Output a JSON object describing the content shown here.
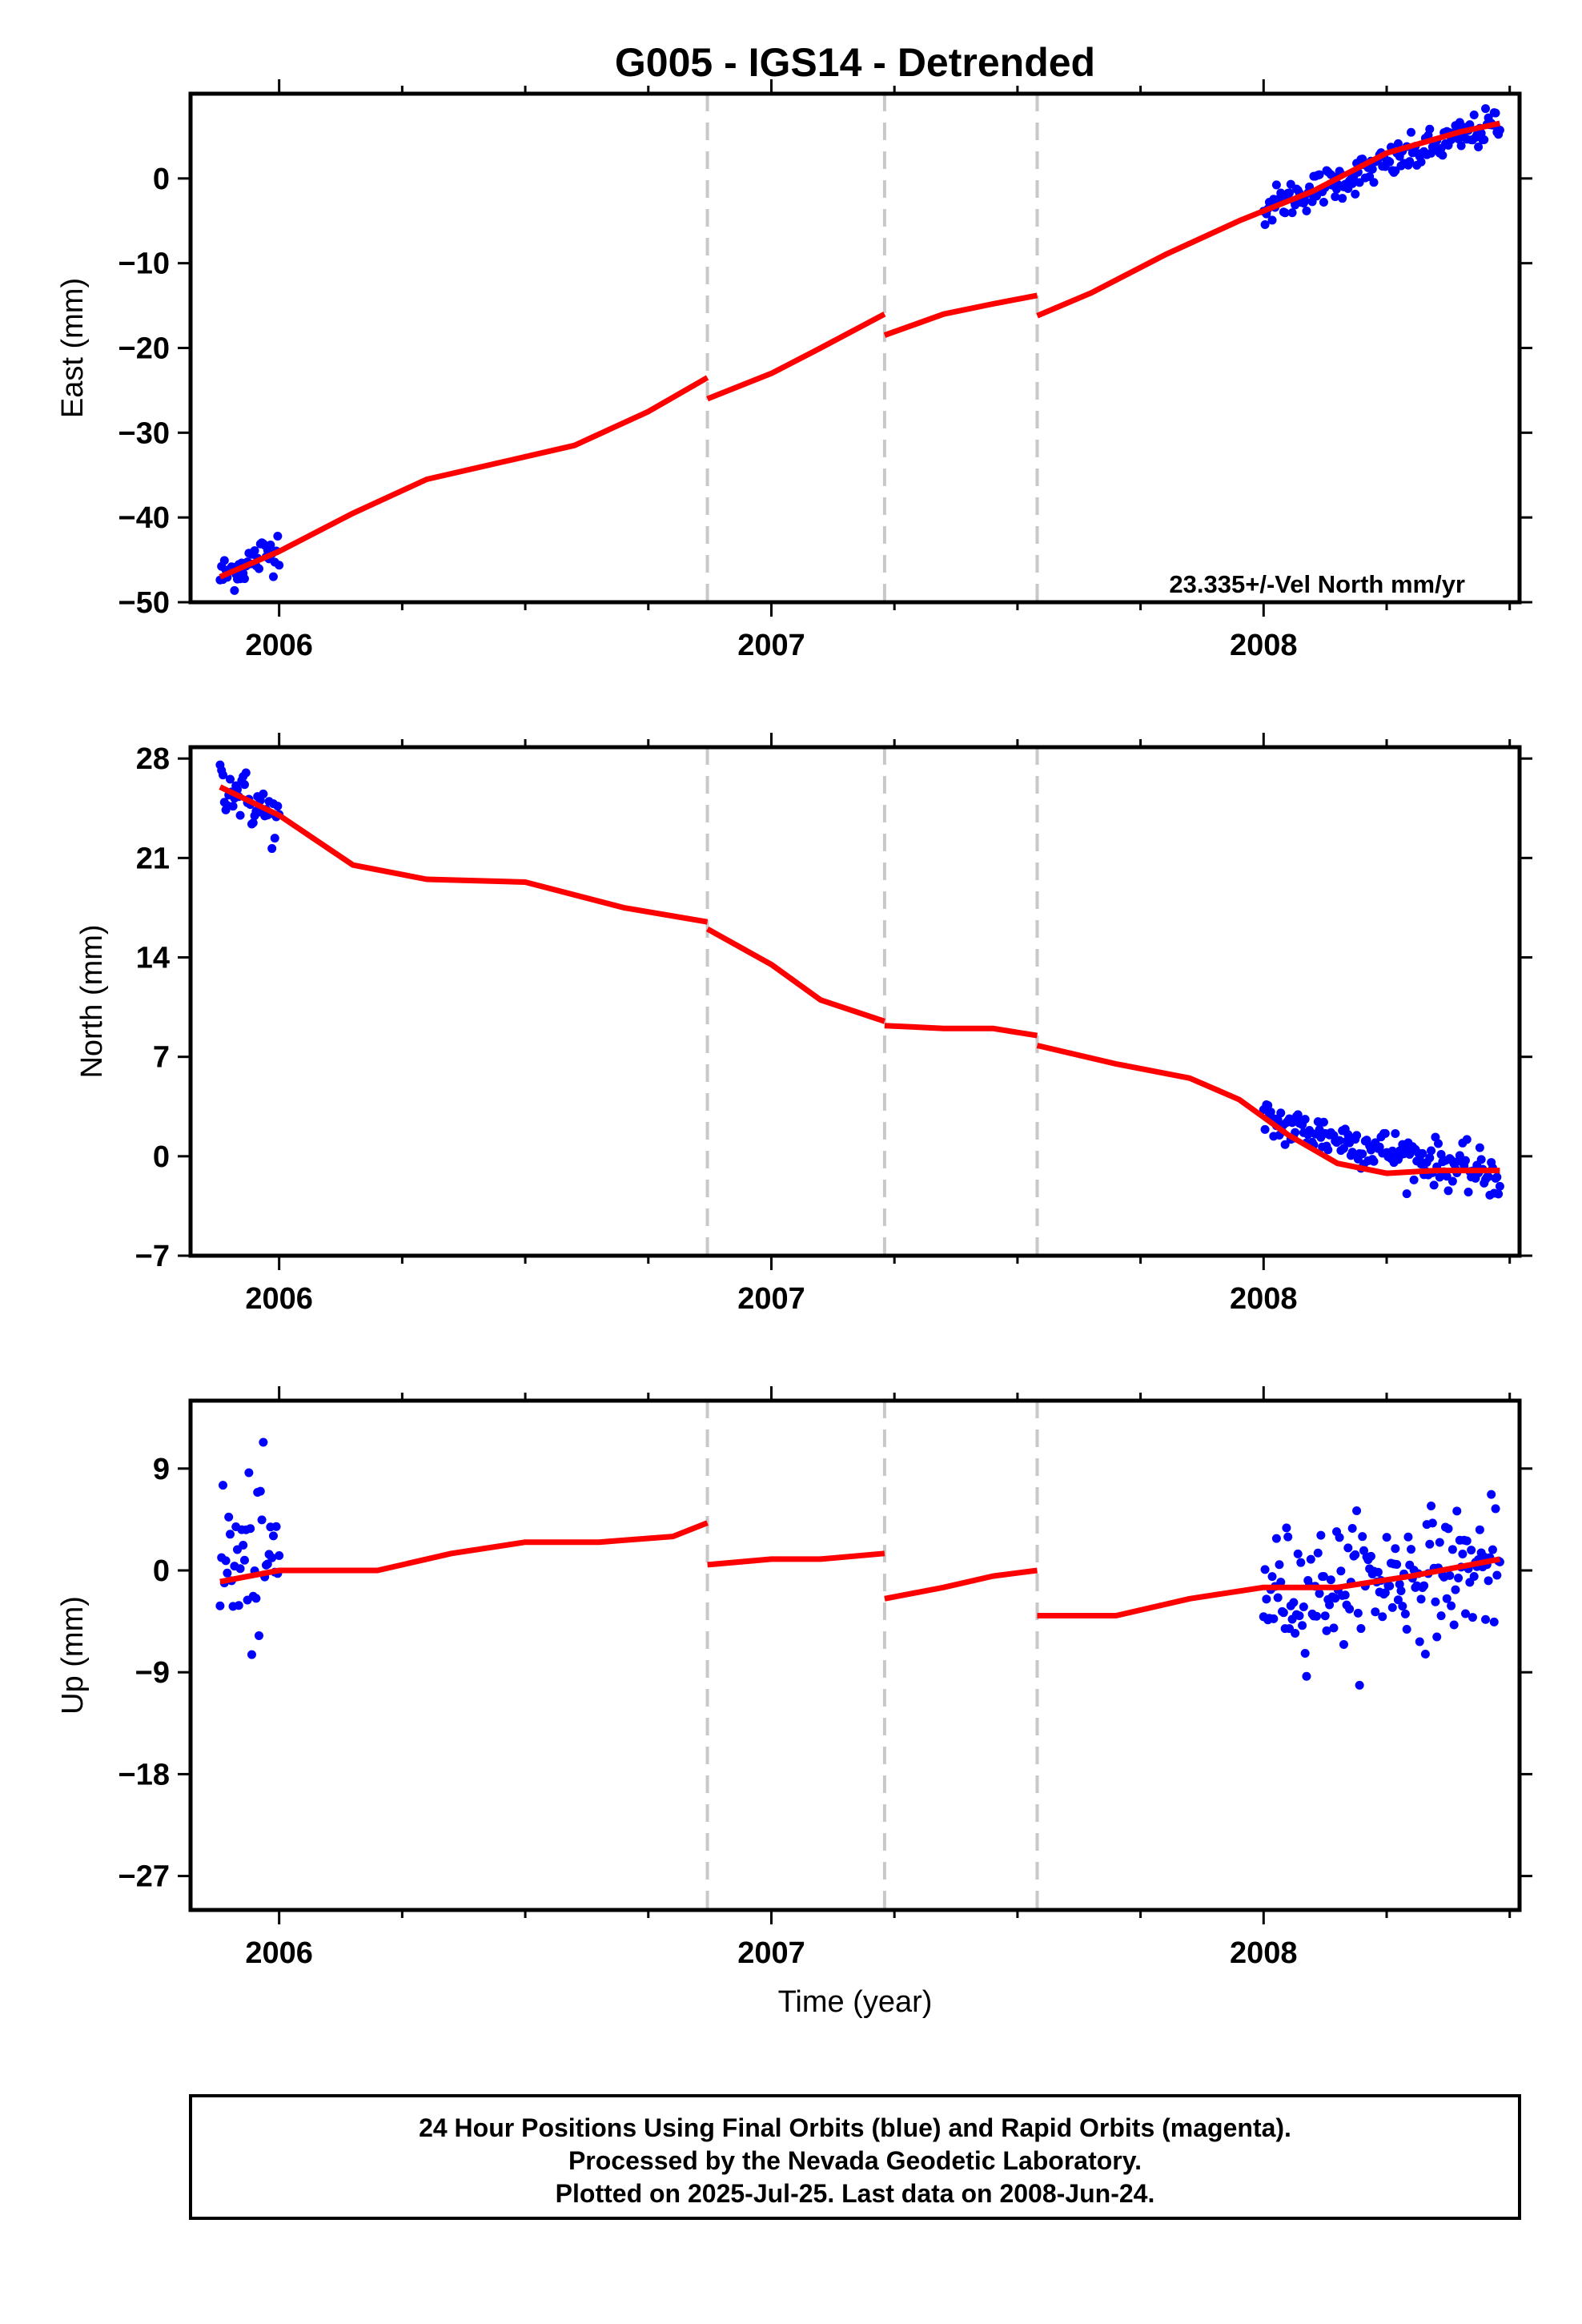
{
  "figure": {
    "title": "G005 - IGS14 - Detrended",
    "xlabel": "Time (year)",
    "footer": [
      "24 Hour Positions Using Final Orbits (blue) and Rapid Orbits (magenta).",
      "Processed by the Nevada Geodetic Laboratory.",
      "Plotted on 2025-Jul-25. Last data on 2008-Jun-24."
    ],
    "colors": {
      "data": "#0000ff",
      "model": "#ff0000",
      "breaks": "#c8c8c8",
      "axes": "#000000"
    }
  },
  "chart_data": [
    {
      "type": "scatter",
      "ylabel": "East (mm)",
      "annotation": "23.335+/-Vel North mm/yr",
      "xlim": [
        2005.82,
        2008.52
      ],
      "ylim": [
        -50,
        10
      ],
      "yticks": [
        0,
        -10,
        -20,
        -30,
        -40,
        -50
      ],
      "xticks": [
        2006,
        2007,
        2008
      ],
      "breaks": [
        2006.87,
        2007.23,
        2007.54
      ],
      "data_segments": [
        {
          "x_start": 2005.88,
          "x_end": 2006.0,
          "start_mean": -47.0,
          "end_mean": -43.5,
          "spread": 2.0
        },
        {
          "x_start": 2008.0,
          "x_end": 2008.48,
          "start_mean": -3.5,
          "end_mean": 6.5,
          "spread": 1.8
        }
      ],
      "model_segments": [
        {
          "x": [
            2005.88,
            2006.0,
            2006.15,
            2006.3,
            2006.45,
            2006.6,
            2006.75,
            2006.87
          ],
          "y": [
            -47,
            -44,
            -39.5,
            -35.5,
            -33.5,
            -31.5,
            -27.5,
            -23.5
          ]
        },
        {
          "x": [
            2006.87,
            2007.0,
            2007.1,
            2007.23
          ],
          "y": [
            -26,
            -23,
            -20,
            -16
          ]
        },
        {
          "x": [
            2007.23,
            2007.35,
            2007.45,
            2007.54
          ],
          "y": [
            -18.5,
            -16,
            -14.8,
            -13.8
          ]
        },
        {
          "x": [
            2007.54,
            2007.65,
            2007.8,
            2007.95,
            2008.1,
            2008.25,
            2008.4,
            2008.48
          ],
          "y": [
            -16.2,
            -13.5,
            -9,
            -5,
            -1.5,
            3,
            5.5,
            6.5
          ]
        }
      ]
    },
    {
      "type": "scatter",
      "ylabel": "North (mm)",
      "xlim": [
        2005.82,
        2008.52
      ],
      "ylim": [
        -7,
        28.8
      ],
      "yticks": [
        28,
        21,
        14,
        7,
        0,
        -7
      ],
      "xticks": [
        2006,
        2007,
        2008
      ],
      "breaks": [
        2006.87,
        2007.23,
        2007.54
      ],
      "data_segments": [
        {
          "x_start": 2005.88,
          "x_end": 2006.0,
          "start_mean": 26.5,
          "end_mean": 23.5,
          "spread": 1.6
        },
        {
          "x_start": 2008.0,
          "x_end": 2008.48,
          "start_mean": 2.5,
          "end_mean": -1.5,
          "spread": 1.3
        }
      ],
      "model_segments": [
        {
          "x": [
            2005.88,
            2006.0,
            2006.15,
            2006.3,
            2006.5,
            2006.7,
            2006.87
          ],
          "y": [
            26,
            24,
            20.5,
            19.5,
            19.3,
            17.5,
            16.5
          ]
        },
        {
          "x": [
            2006.87,
            2007.0,
            2007.1,
            2007.23
          ],
          "y": [
            16,
            13.5,
            11,
            9.5
          ]
        },
        {
          "x": [
            2007.23,
            2007.35,
            2007.45,
            2007.54
          ],
          "y": [
            9.2,
            9.0,
            9.0,
            8.5
          ]
        },
        {
          "x": [
            2007.54,
            2007.7,
            2007.85,
            2007.95,
            2008.05,
            2008.15,
            2008.25,
            2008.35,
            2008.48
          ],
          "y": [
            7.8,
            6.5,
            5.5,
            4,
            1.5,
            -0.5,
            -1.2,
            -1.0,
            -1.0
          ]
        }
      ]
    },
    {
      "type": "scatter",
      "ylabel": "Up (mm)",
      "xlim": [
        2005.82,
        2008.52
      ],
      "ylim": [
        -30,
        15
      ],
      "yticks": [
        9,
        0,
        -9,
        -18,
        -27
      ],
      "xticks": [
        2006,
        2007,
        2008
      ],
      "breaks": [
        2006.87,
        2007.23,
        2007.54
      ],
      "data_segments": [
        {
          "x_start": 2005.88,
          "x_end": 2006.0,
          "start_mean": 0.5,
          "end_mean": 0.5,
          "spread": 6.5
        },
        {
          "x_start": 2008.0,
          "x_end": 2008.48,
          "start_mean": -2.0,
          "end_mean": 0.5,
          "spread": 4.5
        }
      ],
      "model_segments": [
        {
          "x": [
            2005.88,
            2006.0,
            2006.2,
            2006.35,
            2006.5,
            2006.65,
            2006.8,
            2006.87
          ],
          "y": [
            -1,
            0,
            0,
            1.5,
            2.5,
            2.5,
            3,
            4.2
          ]
        },
        {
          "x": [
            2006.87,
            2007.0,
            2007.1,
            2007.23
          ],
          "y": [
            0.5,
            1,
            1,
            1.5
          ]
        },
        {
          "x": [
            2007.23,
            2007.35,
            2007.45,
            2007.54
          ],
          "y": [
            -2.5,
            -1.5,
            -0.5,
            0
          ]
        },
        {
          "x": [
            2007.54,
            2007.7,
            2007.85,
            2008.0,
            2008.15,
            2008.3,
            2008.48
          ],
          "y": [
            -4,
            -4,
            -2.5,
            -1.5,
            -1.5,
            -0.5,
            1
          ]
        }
      ]
    }
  ]
}
